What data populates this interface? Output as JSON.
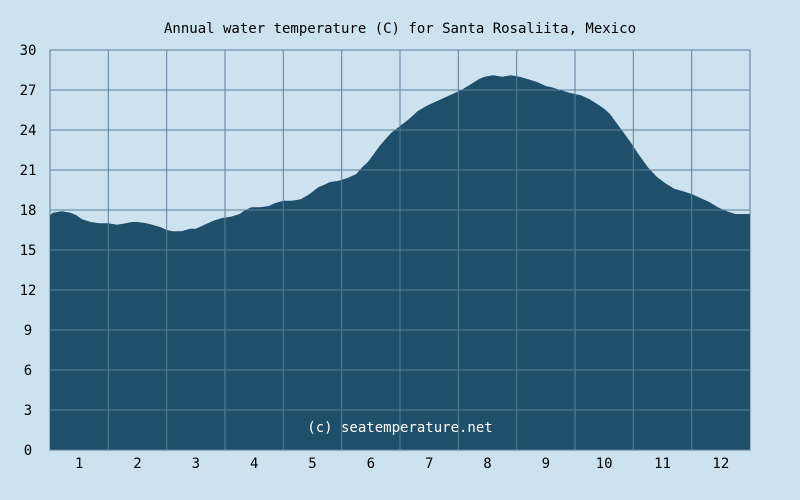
{
  "chart_data": {
    "type": "area",
    "title": "Annual water temperature (C) for Santa Rosaliita, Mexico",
    "xlabel": "",
    "ylabel": "",
    "x_ticks": [
      "1",
      "2",
      "3",
      "4",
      "5",
      "6",
      "7",
      "8",
      "9",
      "10",
      "11",
      "12"
    ],
    "y_ticks": [
      "0",
      "3",
      "6",
      "9",
      "12",
      "15",
      "18",
      "21",
      "24",
      "27",
      "30"
    ],
    "ylim": [
      0,
      30
    ],
    "xlim": [
      0.5,
      12.5
    ],
    "grid": true,
    "legend": "none",
    "annotation": "(c) seatemperature.net",
    "colors": {
      "area": "#1f4f6b",
      "background": "#cce2ee",
      "grid": "#5b7f99"
    },
    "series": [
      {
        "x": [
          0.5,
          0.55,
          0.7,
          0.85,
          0.95,
          1.05,
          1.2,
          1.35,
          1.5,
          1.65,
          1.8,
          1.9,
          2.0,
          2.15,
          2.25,
          2.4,
          2.5,
          2.6,
          2.75,
          2.9,
          3.0,
          3.15,
          3.3,
          3.45,
          3.6,
          3.75,
          3.85,
          3.95,
          4.1,
          4.25,
          4.35,
          4.5,
          4.65,
          4.8,
          4.95,
          5.1,
          5.2,
          5.3,
          5.45,
          5.6,
          5.75,
          5.85,
          5.95,
          6.05,
          6.15,
          6.25,
          6.35,
          6.5,
          6.65,
          6.8,
          6.95,
          7.1,
          7.25,
          7.4,
          7.55,
          7.7,
          7.85,
          7.95,
          8.1,
          8.25,
          8.4,
          8.55,
          8.7,
          8.85,
          9.0,
          9.1,
          9.25,
          9.4,
          9.5,
          9.6,
          9.75,
          9.9,
          10.0,
          10.1,
          10.2,
          10.3,
          10.45,
          10.6,
          10.75,
          10.9,
          11.05,
          11.2,
          11.35,
          11.5,
          11.65,
          11.8,
          11.95,
          12.1,
          12.25,
          12.4,
          12.5
        ],
        "y": [
          17.6,
          17.8,
          17.9,
          17.8,
          17.6,
          17.3,
          17.1,
          17.0,
          17.0,
          16.9,
          17.0,
          17.1,
          17.1,
          17.0,
          16.9,
          16.7,
          16.5,
          16.4,
          16.4,
          16.6,
          16.6,
          16.9,
          17.2,
          17.4,
          17.5,
          17.7,
          18.0,
          18.2,
          18.2,
          18.3,
          18.5,
          18.7,
          18.7,
          18.8,
          19.2,
          19.7,
          19.9,
          20.1,
          20.2,
          20.4,
          20.7,
          21.2,
          21.6,
          22.2,
          22.8,
          23.3,
          23.8,
          24.3,
          24.8,
          25.4,
          25.8,
          26.1,
          26.4,
          26.7,
          27.0,
          27.4,
          27.8,
          28.0,
          28.1,
          28.0,
          28.1,
          28.0,
          27.8,
          27.6,
          27.3,
          27.2,
          27.0,
          26.8,
          26.7,
          26.6,
          26.3,
          25.9,
          25.6,
          25.2,
          24.6,
          24.0,
          23.1,
          22.1,
          21.2,
          20.5,
          20.0,
          19.6,
          19.4,
          19.2,
          18.9,
          18.6,
          18.2,
          17.9,
          17.7,
          17.7,
          17.7
        ]
      }
    ]
  }
}
